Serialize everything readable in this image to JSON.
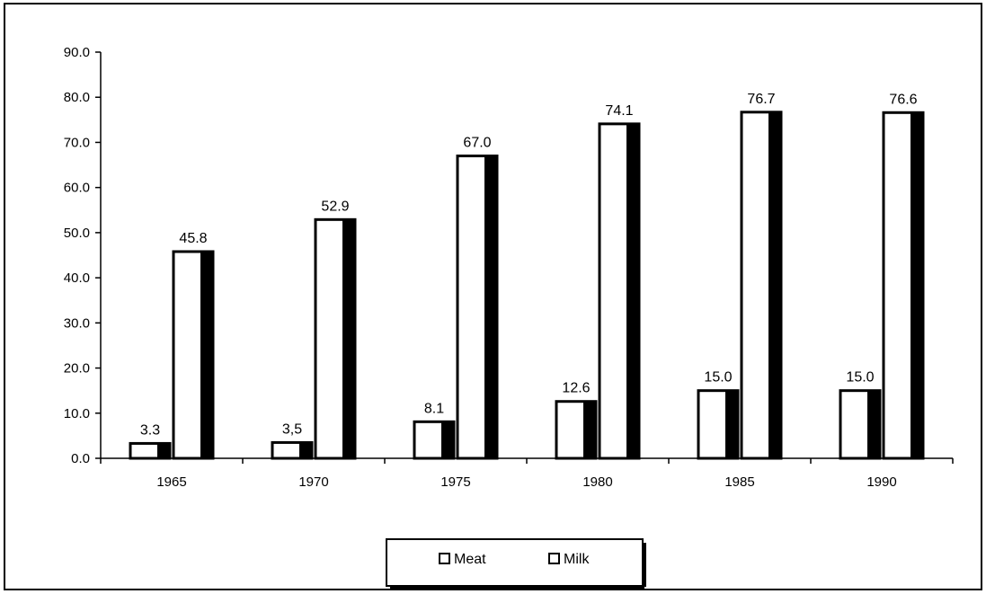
{
  "chart_data": {
    "type": "bar",
    "categories": [
      "1965",
      "1970",
      "1975",
      "1980",
      "1985",
      "1990"
    ],
    "series": [
      {
        "name": "Meat",
        "values": [
          3.3,
          3.5,
          8.1,
          12.6,
          15.0,
          15.0
        ],
        "labels": [
          "3.3",
          "3,5",
          "8.1",
          "12.6",
          "15.0",
          "15.0"
        ]
      },
      {
        "name": "Milk",
        "values": [
          45.8,
          52.9,
          67.0,
          74.1,
          76.7,
          76.6
        ],
        "labels": [
          "45.8",
          "52.9",
          "67.0",
          "74.1",
          "76.7",
          "76.6"
        ]
      }
    ],
    "ylim": [
      0,
      90
    ],
    "y_ticks": [
      "0.0",
      "10.0",
      "20.0",
      "30.0",
      "40.0",
      "50.0",
      "60.0",
      "70.0",
      "80.0",
      "90.0"
    ],
    "grid": false,
    "legend_position": "bottom",
    "colors": {
      "fill": "#ffffff",
      "outline": "#000000"
    }
  }
}
